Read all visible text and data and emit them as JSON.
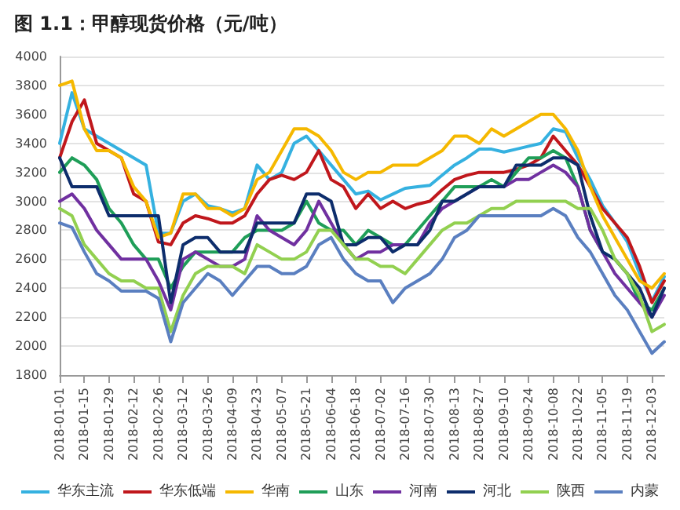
{
  "chart_data": {
    "type": "line",
    "title": "图 1.1：甲醇现货价格（元/吨）",
    "x": [
      "2018-01-01",
      "2018-01-08",
      "2018-01-15",
      "2018-01-22",
      "2018-01-29",
      "2018-02-05",
      "2018-02-12",
      "2018-02-19",
      "2018-02-26",
      "2018-03-05",
      "2018-03-12",
      "2018-03-19",
      "2018-03-26",
      "2018-04-02",
      "2018-04-09",
      "2018-04-16",
      "2018-04-23",
      "2018-04-30",
      "2018-05-07",
      "2018-05-14",
      "2018-05-21",
      "2018-05-28",
      "2018-06-04",
      "2018-06-11",
      "2018-06-18",
      "2018-06-25",
      "2018-07-02",
      "2018-07-09",
      "2018-07-16",
      "2018-07-23",
      "2018-07-30",
      "2018-08-06",
      "2018-08-13",
      "2018-08-20",
      "2018-08-27",
      "2018-09-03",
      "2018-09-10",
      "2018-09-17",
      "2018-09-24",
      "2018-10-01",
      "2018-10-08",
      "2018-10-15",
      "2018-10-22",
      "2018-10-29",
      "2018-11-05",
      "2018-11-12",
      "2018-11-19",
      "2018-11-26",
      "2018-12-03",
      "2018-12-10"
    ],
    "series": [
      {
        "name": "华东主流",
        "color": "#35b1e0",
        "values": [
          3400,
          3750,
          3500,
          3450,
          3400,
          3350,
          3300,
          3250,
          2780,
          2780,
          3000,
          3050,
          2970,
          2950,
          2920,
          2950,
          3250,
          3150,
          3200,
          3400,
          3450,
          3350,
          3250,
          3150,
          3050,
          3070,
          3010,
          3050,
          3090,
          3100,
          3110,
          3180,
          3250,
          3300,
          3360,
          3360,
          3340,
          3360,
          3380,
          3400,
          3500,
          3480,
          3300,
          3150,
          2970,
          2850,
          2720,
          2500,
          2310,
          2480
        ]
      },
      {
        "name": "华东低端",
        "color": "#c0171c",
        "values": [
          3300,
          3550,
          3700,
          3400,
          3350,
          3300,
          3050,
          3000,
          2720,
          2700,
          2850,
          2900,
          2880,
          2850,
          2850,
          2900,
          3050,
          3150,
          3180,
          3150,
          3200,
          3350,
          3150,
          3100,
          2950,
          3050,
          2950,
          3000,
          2950,
          2980,
          3000,
          3080,
          3150,
          3180,
          3200,
          3200,
          3200,
          3220,
          3250,
          3300,
          3450,
          3350,
          3250,
          3100,
          2950,
          2850,
          2750,
          2550,
          2300,
          2450
        ]
      },
      {
        "name": "华南",
        "color": "#f5b800",
        "values": [
          3800,
          3830,
          3500,
          3350,
          3350,
          3300,
          3100,
          3000,
          2750,
          2780,
          3050,
          3050,
          2950,
          2950,
          2900,
          2950,
          3150,
          3200,
          3350,
          3500,
          3500,
          3450,
          3350,
          3200,
          3150,
          3200,
          3200,
          3250,
          3250,
          3250,
          3300,
          3350,
          3450,
          3450,
          3400,
          3500,
          3450,
          3500,
          3550,
          3600,
          3600,
          3500,
          3350,
          3100,
          2900,
          2750,
          2600,
          2450,
          2400,
          2500
        ]
      },
      {
        "name": "山东",
        "color": "#1f9e58",
        "values": [
          3200,
          3300,
          3250,
          3150,
          2950,
          2850,
          2700,
          2600,
          2600,
          2400,
          2550,
          2650,
          2650,
          2650,
          2650,
          2750,
          2800,
          2800,
          2800,
          2850,
          3000,
          2850,
          2800,
          2800,
          2700,
          2800,
          2750,
          2700,
          2700,
          2800,
          2900,
          3000,
          3100,
          3100,
          3100,
          3150,
          3100,
          3200,
          3300,
          3300,
          3350,
          3300,
          3100,
          2800,
          2650,
          2600,
          2500,
          2300,
          2250,
          2400
        ]
      },
      {
        "name": "河南",
        "color": "#7030a0",
        "values": [
          3000,
          3050,
          2950,
          2800,
          2700,
          2600,
          2600,
          2600,
          2450,
          2250,
          2600,
          2650,
          2600,
          2550,
          2550,
          2600,
          2900,
          2800,
          2750,
          2700,
          2800,
          3000,
          2850,
          2700,
          2600,
          2650,
          2650,
          2700,
          2700,
          2700,
          2850,
          2950,
          3000,
          3050,
          3100,
          3100,
          3100,
          3150,
          3150,
          3200,
          3250,
          3200,
          3100,
          2800,
          2650,
          2500,
          2400,
          2300,
          2200,
          2350
        ]
      },
      {
        "name": "河北",
        "color": "#0d2d6c",
        "values": [
          3300,
          3100,
          3100,
          3100,
          2900,
          2900,
          2900,
          2900,
          2900,
          2300,
          2700,
          2750,
          2750,
          2650,
          2650,
          2650,
          2850,
          2850,
          2850,
          2850,
          3050,
          3050,
          3000,
          2700,
          2700,
          2750,
          2750,
          2650,
          2700,
          2700,
          2800,
          3000,
          3000,
          3050,
          3100,
          3100,
          3100,
          3250,
          3250,
          3250,
          3300,
          3300,
          3250,
          2900,
          2650,
          2600,
          2500,
          2400,
          2200,
          2400
        ]
      },
      {
        "name": "陕西",
        "color": "#92d050",
        "values": [
          2950,
          2900,
          2700,
          2600,
          2500,
          2450,
          2450,
          2400,
          2400,
          2100,
          2350,
          2500,
          2550,
          2550,
          2550,
          2500,
          2700,
          2650,
          2600,
          2600,
          2650,
          2800,
          2800,
          2700,
          2600,
          2600,
          2550,
          2550,
          2500,
          2600,
          2700,
          2800,
          2850,
          2850,
          2900,
          2950,
          2950,
          3000,
          3000,
          3000,
          3000,
          3000,
          2950,
          2950,
          2800,
          2600,
          2500,
          2350,
          2100,
          2150
        ]
      },
      {
        "name": "内蒙",
        "color": "#5a7fc0",
        "values": [
          2850,
          2820,
          2650,
          2500,
          2450,
          2380,
          2380,
          2380,
          2330,
          2030,
          2300,
          2400,
          2500,
          2450,
          2350,
          2450,
          2550,
          2550,
          2500,
          2500,
          2550,
          2700,
          2750,
          2600,
          2500,
          2450,
          2450,
          2300,
          2400,
          2450,
          2500,
          2600,
          2750,
          2800,
          2900,
          2900,
          2900,
          2900,
          2900,
          2900,
          2950,
          2900,
          2750,
          2650,
          2500,
          2350,
          2250,
          2100,
          1950,
          2030
        ]
      }
    ],
    "xlim": [
      "2018-01-01",
      "2018-12-10"
    ],
    "xticks": [
      "2018-01-01",
      "2018-01-15",
      "2018-01-29",
      "2018-02-12",
      "2018-02-26",
      "2018-03-12",
      "2018-03-26",
      "2018-04-09",
      "2018-04-23",
      "2018-05-07",
      "2018-05-21",
      "2018-06-04",
      "2018-06-18",
      "2018-07-02",
      "2018-07-16",
      "2018-07-30",
      "2018-08-13",
      "2018-08-27",
      "2018-09-10",
      "2018-09-24",
      "2018-10-08",
      "2018-10-22",
      "2018-11-05",
      "2018-11-19",
      "2018-12-03"
    ],
    "ylim": [
      1800,
      4000
    ],
    "yticks": [
      1800,
      2000,
      2200,
      2400,
      2600,
      2800,
      3000,
      3200,
      3400,
      3600,
      3800,
      4000
    ],
    "grid": "y",
    "legend": "bottom",
    "marker": "none",
    "line_style": "solid"
  }
}
